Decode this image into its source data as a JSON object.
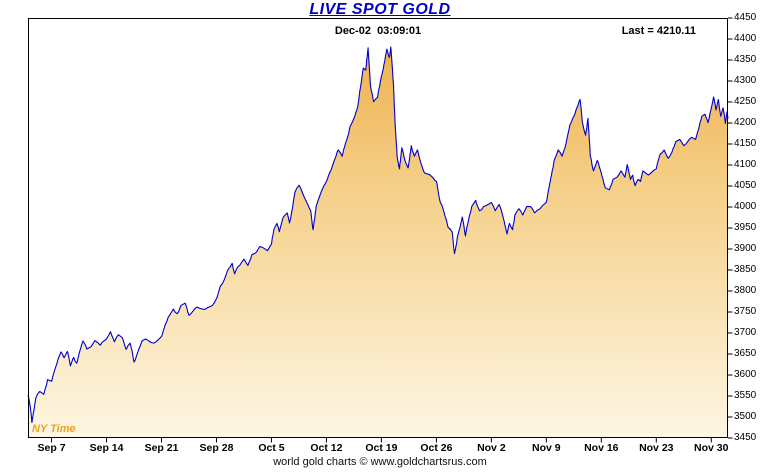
{
  "title": "LIVE SPOT GOLD",
  "header": {
    "timestamp": "Dec-02  03:09:01",
    "last_label": "Last = 4210.11"
  },
  "ny_time_label": "NY Time",
  "footer": "world gold charts © www.goldchartsrus.com",
  "colors": {
    "line": "#0000cd",
    "title": "#0000c8",
    "border": "#000000",
    "fill_top": "#edac44",
    "fill_mid": "#f5cf87",
    "fill_low": "#fae7bd",
    "fill_bottom": "#fdf6e3",
    "ny_time": "#eca327"
  },
  "chart_data": {
    "type": "area",
    "title": "LIVE SPOT GOLD",
    "xlabel": "",
    "ylabel": "",
    "last": 4210.11,
    "ylim": [
      3450,
      4450
    ],
    "y_tick_step": 50,
    "y_ticks": [
      4450,
      4400,
      4350,
      4300,
      4250,
      4200,
      4150,
      4100,
      4050,
      4000,
      3950,
      3900,
      3850,
      3800,
      3750,
      3700,
      3650,
      3600,
      3550,
      3500,
      3450
    ],
    "x_tick_labels": [
      "Sep 7",
      "Sep 14",
      "Sep 21",
      "Sep 28",
      "Oct 5",
      "Oct 12",
      "Oct 19",
      "Oct 26",
      "Nov 2",
      "Nov 9",
      "Nov 16",
      "Nov 23",
      "Nov 30"
    ],
    "x_tick_days": [
      3,
      10,
      17,
      24,
      31,
      38,
      45,
      52,
      59,
      66,
      73,
      80,
      87
    ],
    "x_range_days": [
      0,
      89.13
    ],
    "grid": false,
    "legend": false,
    "points": [
      [
        0,
        3552
      ],
      [
        0.3,
        3521
      ],
      [
        0.5,
        3487
      ],
      [
        0.7,
        3512
      ],
      [
        1,
        3546
      ],
      [
        1.5,
        3561
      ],
      [
        2,
        3554
      ],
      [
        2.5,
        3589
      ],
      [
        3,
        3585
      ],
      [
        3.4,
        3612
      ],
      [
        3.8,
        3636
      ],
      [
        4.2,
        3655
      ],
      [
        4.6,
        3641
      ],
      [
        5,
        3656
      ],
      [
        5.4,
        3622
      ],
      [
        5.8,
        3642
      ],
      [
        6.2,
        3628
      ],
      [
        6.6,
        3657
      ],
      [
        7,
        3681
      ],
      [
        7.5,
        3662
      ],
      [
        8,
        3667
      ],
      [
        8.5,
        3682
      ],
      [
        9.2,
        3671
      ],
      [
        10,
        3686
      ],
      [
        10.5,
        3703
      ],
      [
        11,
        3679
      ],
      [
        11.5,
        3696
      ],
      [
        12,
        3689
      ],
      [
        12.5,
        3661
      ],
      [
        13,
        3676
      ],
      [
        13.5,
        3631
      ],
      [
        14,
        3656
      ],
      [
        14.5,
        3681
      ],
      [
        15,
        3686
      ],
      [
        16,
        3676
      ],
      [
        16.6,
        3684
      ],
      [
        17,
        3692
      ],
      [
        17.5,
        3721
      ],
      [
        18,
        3742
      ],
      [
        18.5,
        3757
      ],
      [
        19,
        3746
      ],
      [
        19.5,
        3766
      ],
      [
        20,
        3771
      ],
      [
        20.5,
        3742
      ],
      [
        21,
        3752
      ],
      [
        21.5,
        3762
      ],
      [
        22.5,
        3756
      ],
      [
        23.5,
        3766
      ],
      [
        24,
        3782
      ],
      [
        24.5,
        3812
      ],
      [
        25,
        3827
      ],
      [
        25.5,
        3852
      ],
      [
        26,
        3866
      ],
      [
        26.3,
        3841
      ],
      [
        26.7,
        3857
      ],
      [
        27,
        3862
      ],
      [
        27.5,
        3876
      ],
      [
        28,
        3861
      ],
      [
        28.5,
        3886
      ],
      [
        29,
        3891
      ],
      [
        29.5,
        3906
      ],
      [
        30.5,
        3896
      ],
      [
        31,
        3912
      ],
      [
        31.3,
        3946
      ],
      [
        31.7,
        3961
      ],
      [
        32,
        3941
      ],
      [
        32.5,
        3976
      ],
      [
        33,
        3986
      ],
      [
        33.3,
        3962
      ],
      [
        33.7,
        4001
      ],
      [
        34,
        4036
      ],
      [
        34.5,
        4052
      ],
      [
        35,
        4031
      ],
      [
        35.5,
        4011
      ],
      [
        36,
        3991
      ],
      [
        36.3,
        3946
      ],
      [
        36.7,
        4002
      ],
      [
        37,
        4019
      ],
      [
        38,
        4061
      ],
      [
        39,
        4111
      ],
      [
        39.5,
        4136
      ],
      [
        40,
        4121
      ],
      [
        40.5,
        4156
      ],
      [
        41,
        4191
      ],
      [
        41.5,
        4211
      ],
      [
        42,
        4241
      ],
      [
        42.3,
        4281
      ],
      [
        42.7,
        4331
      ],
      [
        43,
        4326
      ],
      [
        43.3,
        4379
      ],
      [
        43.6,
        4291
      ],
      [
        44,
        4251
      ],
      [
        44.5,
        4261
      ],
      [
        45,
        4311
      ],
      [
        45.4,
        4346
      ],
      [
        45.7,
        4376
      ],
      [
        46,
        4356
      ],
      [
        46.2,
        4381
      ],
      [
        46.5,
        4301
      ],
      [
        46.8,
        4181
      ],
      [
        47,
        4121
      ],
      [
        47.3,
        4091
      ],
      [
        47.6,
        4141
      ],
      [
        48,
        4111
      ],
      [
        48.4,
        4093
      ],
      [
        48.8,
        4146
      ],
      [
        49.2,
        4121
      ],
      [
        49.6,
        4136
      ],
      [
        50,
        4106
      ],
      [
        50.5,
        4081
      ],
      [
        51.5,
        4071
      ],
      [
        52,
        4061
      ],
      [
        52.5,
        4011
      ],
      [
        53,
        3986
      ],
      [
        53.5,
        3951
      ],
      [
        54,
        3941
      ],
      [
        54.3,
        3889
      ],
      [
        54.7,
        3931
      ],
      [
        55,
        3951
      ],
      [
        55.3,
        3976
      ],
      [
        55.7,
        3931
      ],
      [
        56,
        3961
      ],
      [
        56.5,
        4001
      ],
      [
        57,
        4016
      ],
      [
        57.5,
        3991
      ],
      [
        58,
        4001
      ],
      [
        59,
        4011
      ],
      [
        59.5,
        3991
      ],
      [
        60,
        4006
      ],
      [
        60.5,
        3976
      ],
      [
        61,
        3936
      ],
      [
        61.3,
        3961
      ],
      [
        61.7,
        3946
      ],
      [
        62,
        3981
      ],
      [
        62.5,
        3996
      ],
      [
        63,
        3981
      ],
      [
        63.5,
        4001
      ],
      [
        64,
        4001
      ],
      [
        64.5,
        3986
      ],
      [
        65.2,
        3996
      ],
      [
        66,
        4011
      ],
      [
        66.5,
        4061
      ],
      [
        67,
        4111
      ],
      [
        67.5,
        4136
      ],
      [
        68,
        4121
      ],
      [
        68.5,
        4151
      ],
      [
        69,
        4196
      ],
      [
        69.5,
        4216
      ],
      [
        70,
        4241
      ],
      [
        70.3,
        4256
      ],
      [
        70.6,
        4201
      ],
      [
        71,
        4171
      ],
      [
        71.3,
        4211
      ],
      [
        71.6,
        4121
      ],
      [
        72,
        4086
      ],
      [
        72.5,
        4111
      ],
      [
        73,
        4081
      ],
      [
        73.5,
        4046
      ],
      [
        74,
        4041
      ],
      [
        74.5,
        4066
      ],
      [
        75,
        4071
      ],
      [
        75.5,
        4086
      ],
      [
        76,
        4071
      ],
      [
        76.3,
        4101
      ],
      [
        76.7,
        4066
      ],
      [
        77,
        4076
      ],
      [
        77.3,
        4051
      ],
      [
        77.7,
        4066
      ],
      [
        78,
        4061
      ],
      [
        78.3,
        4086
      ],
      [
        79,
        4076
      ],
      [
        80,
        4091
      ],
      [
        80.5,
        4126
      ],
      [
        81,
        4136
      ],
      [
        81.5,
        4116
      ],
      [
        82,
        4131
      ],
      [
        82.5,
        4156
      ],
      [
        83,
        4161
      ],
      [
        83.5,
        4146
      ],
      [
        84,
        4156
      ],
      [
        84.5,
        4166
      ],
      [
        85,
        4161
      ],
      [
        85.4,
        4186
      ],
      [
        85.8,
        4216
      ],
      [
        86.2,
        4221
      ],
      [
        86.6,
        4201
      ],
      [
        87,
        4236
      ],
      [
        87.3,
        4262
      ],
      [
        87.6,
        4231
      ],
      [
        87.9,
        4256
      ],
      [
        88.2,
        4216
      ],
      [
        88.5,
        4236
      ],
      [
        88.8,
        4199
      ],
      [
        89,
        4226
      ],
      [
        89.13,
        4210.11
      ]
    ]
  }
}
